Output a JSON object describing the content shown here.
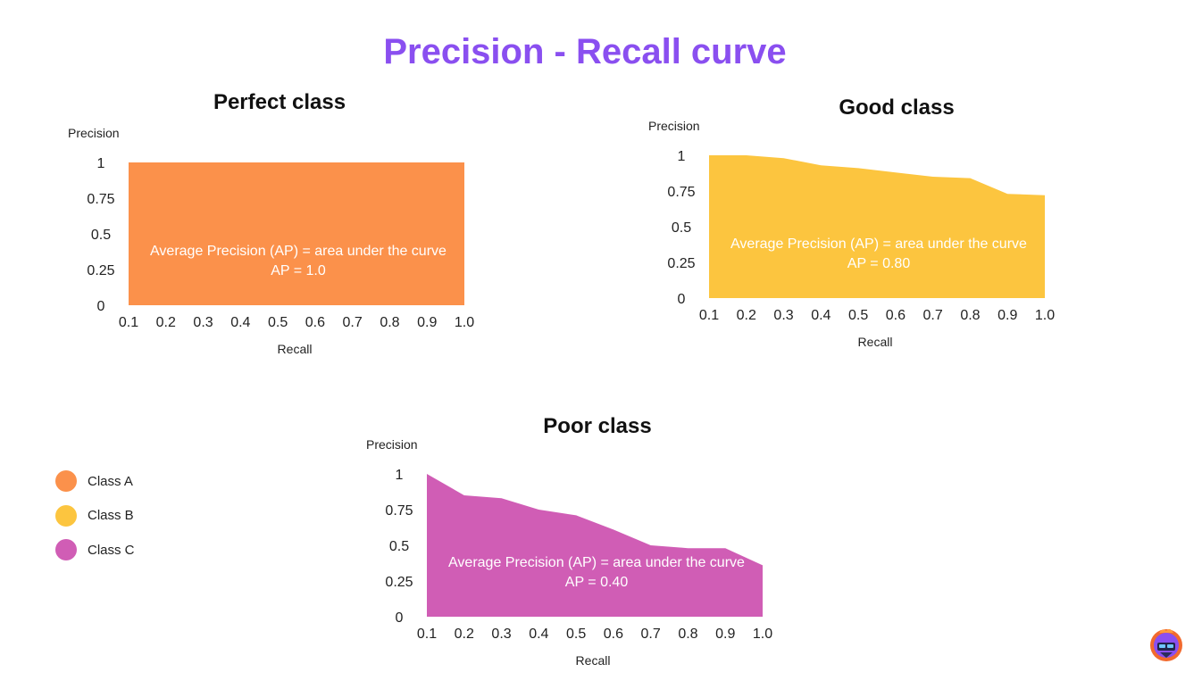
{
  "title": "Precision - Recall curve",
  "chart_data": [
    {
      "type": "area",
      "title": "Perfect class",
      "xlabel": "Recall",
      "ylabel": "Precision",
      "x": [
        0.1,
        0.2,
        0.3,
        0.4,
        0.5,
        0.6,
        0.7,
        0.8,
        0.9,
        1.0
      ],
      "x_tick_labels": [
        "0.1",
        "0.2",
        "0.3",
        "0.4",
        "0.5",
        "0.6",
        "0.7",
        "0.8",
        "0.9",
        "1.0"
      ],
      "y_ticks": [
        0,
        0.25,
        0.5,
        0.75,
        1
      ],
      "y_tick_labels": [
        "0",
        "0.25",
        "0.5",
        "0.75",
        "1"
      ],
      "xlim": [
        0.1,
        1.0
      ],
      "ylim": [
        0,
        1
      ],
      "series": [
        {
          "values": [
            1,
            1,
            1,
            1,
            1,
            1,
            1,
            1,
            1,
            1
          ],
          "color": "#fb914b"
        }
      ],
      "annotation": [
        "Average Precision (AP) = area under the curve",
        "AP = 1.0"
      ],
      "grid": false
    },
    {
      "type": "area",
      "title": "Good class",
      "xlabel": "Recall",
      "ylabel": "Precision",
      "x": [
        0.1,
        0.2,
        0.3,
        0.4,
        0.5,
        0.6,
        0.7,
        0.8,
        0.9,
        1.0
      ],
      "x_tick_labels": [
        "0.1",
        "0.2",
        "0.3",
        "0.4",
        "0.5",
        "0.6",
        "0.7",
        "0.8",
        "0.9",
        "1.0"
      ],
      "y_ticks": [
        0,
        0.25,
        0.5,
        0.75,
        1
      ],
      "y_tick_labels": [
        "0",
        "0.25",
        "0.5",
        "0.75",
        "1"
      ],
      "xlim": [
        0.1,
        1.0
      ],
      "ylim": [
        0,
        1
      ],
      "series": [
        {
          "values": [
            1.0,
            1.0,
            0.98,
            0.93,
            0.91,
            0.88,
            0.85,
            0.84,
            0.73,
            0.72
          ],
          "color": "#fcc53f"
        }
      ],
      "annotation": [
        "Average Precision (AP) = area under the curve",
        "AP = 0.80"
      ],
      "grid": false
    },
    {
      "type": "area",
      "title": "Poor class",
      "xlabel": "Recall",
      "ylabel": "Precision",
      "x": [
        0.1,
        0.2,
        0.3,
        0.4,
        0.5,
        0.6,
        0.7,
        0.8,
        0.9,
        1.0
      ],
      "x_tick_labels": [
        "0.1",
        "0.2",
        "0.3",
        "0.4",
        "0.5",
        "0.6",
        "0.7",
        "0.8",
        "0.9",
        "1.0"
      ],
      "y_ticks": [
        0,
        0.25,
        0.5,
        0.75,
        1
      ],
      "y_tick_labels": [
        "0",
        "0.25",
        "0.5",
        "0.75",
        "1"
      ],
      "xlim": [
        0.1,
        1.0
      ],
      "ylim": [
        0,
        1
      ],
      "series": [
        {
          "values": [
            1.0,
            0.85,
            0.83,
            0.75,
            0.71,
            0.61,
            0.5,
            0.48,
            0.48,
            0.36
          ],
          "color": "#d05db5"
        }
      ],
      "annotation": [
        "Average Precision (AP) = area under the curve",
        "AP = 0.40"
      ],
      "grid": false
    }
  ],
  "legend": {
    "items": [
      {
        "label": "Class A",
        "color": "#fb914b"
      },
      {
        "label": "Class B",
        "color": "#fcc53f"
      },
      {
        "label": "Class C",
        "color": "#d05db5"
      }
    ]
  },
  "logo": {
    "icon": "helmet-logo-icon"
  }
}
